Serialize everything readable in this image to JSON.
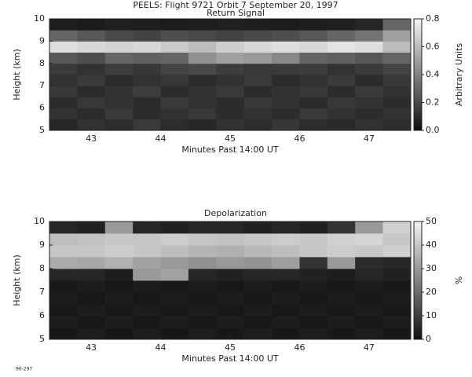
{
  "chart_data": [
    {
      "type": "heatmap",
      "title": "PEELS: Flight 9721  Orbit 7  September 20, 1997",
      "subtitle": "Return Signal",
      "xlabel": "Minutes Past 14:00 UT",
      "ylabel": "Height (km)",
      "colorbar_label": "Arbitrary Units",
      "x": [
        42.6,
        43,
        43.4,
        43.8,
        44.2,
        44.6,
        45,
        45.4,
        45.8,
        46.2,
        46.6,
        47,
        47.4
      ],
      "y": [
        5.25,
        5.75,
        6.25,
        6.75,
        7.25,
        7.75,
        8.25,
        8.75,
        9.25,
        9.75
      ],
      "values": [
        [
          0.08,
          0.12,
          0.1,
          0.15,
          0.1,
          0.08,
          0.12,
          0.1,
          0.14,
          0.1,
          0.09,
          0.12,
          0.1
        ],
        [
          0.12,
          0.1,
          0.15,
          0.1,
          0.12,
          0.14,
          0.1,
          0.12,
          0.1,
          0.15,
          0.12,
          0.1,
          0.12
        ],
        [
          0.1,
          0.14,
          0.12,
          0.1,
          0.15,
          0.12,
          0.1,
          0.14,
          0.12,
          0.1,
          0.14,
          0.12,
          0.1
        ],
        [
          0.14,
          0.1,
          0.12,
          0.16,
          0.1,
          0.12,
          0.15,
          0.1,
          0.12,
          0.14,
          0.1,
          0.15,
          0.12
        ],
        [
          0.12,
          0.15,
          0.1,
          0.12,
          0.14,
          0.1,
          0.12,
          0.15,
          0.1,
          0.12,
          0.15,
          0.1,
          0.14
        ],
        [
          0.15,
          0.12,
          0.16,
          0.14,
          0.18,
          0.2,
          0.16,
          0.14,
          0.15,
          0.16,
          0.12,
          0.15,
          0.18
        ],
        [
          0.25,
          0.22,
          0.3,
          0.28,
          0.3,
          0.45,
          0.5,
          0.48,
          0.42,
          0.3,
          0.28,
          0.25,
          0.3
        ],
        [
          0.72,
          0.7,
          0.68,
          0.7,
          0.65,
          0.6,
          0.66,
          0.7,
          0.72,
          0.7,
          0.74,
          0.72,
          0.6
        ],
        [
          0.3,
          0.25,
          0.2,
          0.18,
          0.22,
          0.2,
          0.18,
          0.2,
          0.22,
          0.25,
          0.3,
          0.35,
          0.5
        ],
        [
          0.05,
          0.04,
          0.06,
          0.05,
          0.04,
          0.05,
          0.06,
          0.05,
          0.04,
          0.05,
          0.06,
          0.08,
          0.3
        ]
      ],
      "xlim": [
        42.4,
        47.6
      ],
      "ylim": [
        5,
        10
      ],
      "xticks": [
        43,
        44,
        45,
        46,
        47
      ],
      "yticks": [
        5,
        6,
        7,
        8,
        9,
        10
      ],
      "clim": [
        0,
        0.8
      ],
      "cticks": [
        {
          "value": 0,
          "label": "0.0"
        },
        0.2,
        0.4,
        0.6,
        0.8
      ]
    },
    {
      "type": "heatmap",
      "title": "Depolarization",
      "xlabel": "Minutes Past 14:00 UT",
      "ylabel": "Height (km)",
      "colorbar_label": "%",
      "x": [
        42.6,
        43,
        43.4,
        43.8,
        44.2,
        44.6,
        45,
        45.4,
        45.8,
        46.2,
        46.6,
        47,
        47.4
      ],
      "y": [
        5.25,
        5.75,
        6.25,
        6.75,
        7.25,
        7.75,
        8.25,
        8.75,
        9.25,
        9.75
      ],
      "values": [
        [
          2,
          3,
          2,
          3,
          2,
          3,
          2,
          3,
          2,
          3,
          2,
          3,
          2
        ],
        [
          3,
          2,
          3,
          2,
          3,
          2,
          3,
          2,
          3,
          2,
          3,
          2,
          3
        ],
        [
          2,
          3,
          2,
          3,
          2,
          3,
          2,
          3,
          2,
          3,
          2,
          3,
          2
        ],
        [
          3,
          2,
          3,
          2,
          3,
          2,
          3,
          2,
          3,
          2,
          3,
          2,
          3
        ],
        [
          2,
          3,
          2,
          3,
          2,
          3,
          2,
          3,
          2,
          3,
          2,
          3,
          2
        ],
        [
          5,
          5,
          3,
          30,
          32,
          5,
          4,
          5,
          5,
          4,
          3,
          5,
          4
        ],
        [
          34,
          33,
          35,
          32,
          30,
          28,
          30,
          29,
          31,
          8,
          30,
          6,
          5
        ],
        [
          40,
          40,
          41,
          40,
          38,
          36,
          35,
          37,
          38,
          40,
          41,
          40,
          42
        ],
        [
          38,
          39,
          40,
          40,
          41,
          40,
          39,
          40,
          41,
          40,
          42,
          43,
          40
        ],
        [
          5,
          4,
          30,
          5,
          4,
          5,
          5,
          4,
          5,
          4,
          8,
          30,
          42
        ]
      ],
      "xlim": [
        42.4,
        47.6
      ],
      "ylim": [
        5,
        10
      ],
      "xticks": [
        43,
        44,
        45,
        46,
        47
      ],
      "yticks": [
        5,
        6,
        7,
        8,
        9,
        10
      ],
      "clim": [
        0,
        50
      ],
      "cticks": [
        0,
        10,
        20,
        30,
        40,
        50
      ]
    }
  ],
  "figure_note": "96-297"
}
